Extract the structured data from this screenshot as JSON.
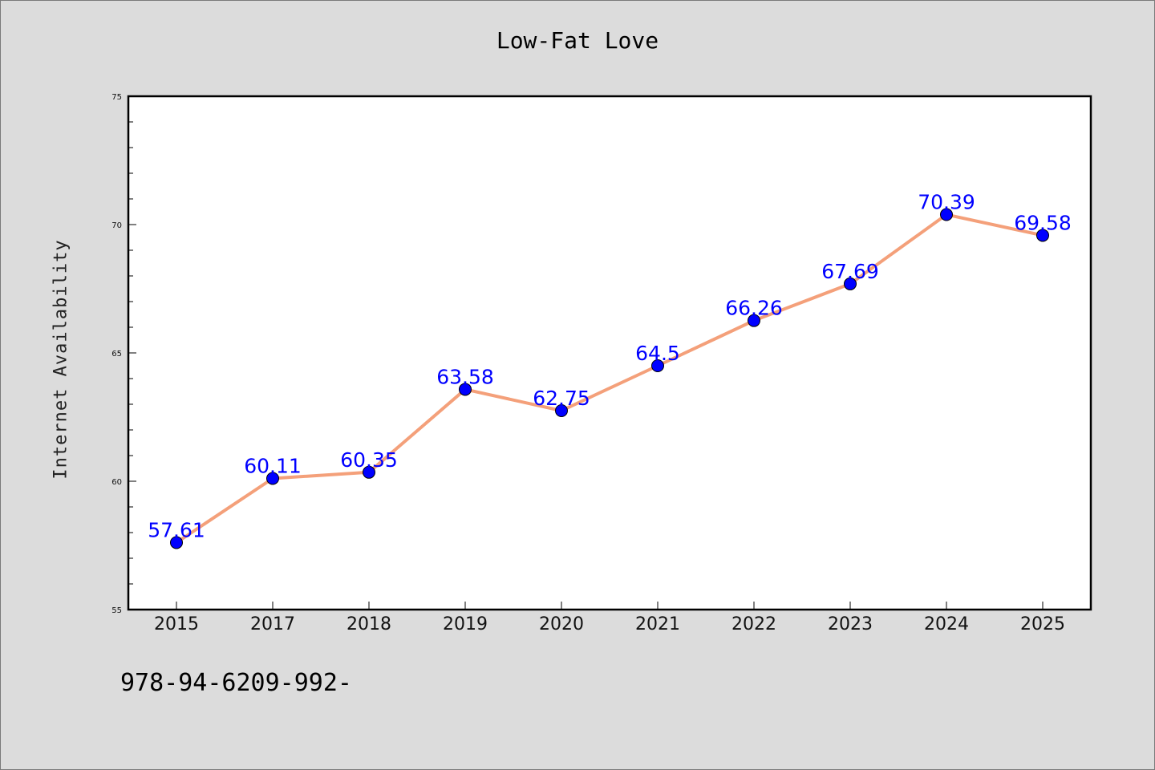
{
  "chart_data": {
    "type": "line",
    "title": "Low-Fat Love",
    "xlabel": "",
    "ylabel": "Internet Availability",
    "categories": [
      "2015",
      "2017",
      "2018",
      "2019",
      "2020",
      "2021",
      "2022",
      "2023",
      "2024",
      "2025"
    ],
    "series": [
      {
        "values": [
          57.61,
          60.11,
          60.35,
          63.58,
          62.75,
          64.5,
          66.26,
          67.69,
          70.39,
          69.58
        ],
        "labels": [
          "57.61",
          "60.11",
          "60.35",
          "63.58",
          "62.75",
          "64.5",
          "66.26",
          "67.69",
          "70.39",
          "69.58"
        ],
        "line_color": "#f4a07a",
        "marker_color": "#0000ff"
      }
    ],
    "ylim": [
      55,
      75
    ],
    "yticks": [
      "55",
      "60",
      "65",
      "70",
      "75"
    ],
    "grid": false,
    "legend": "none"
  },
  "footer": {
    "code": "978-94-6209-992-"
  }
}
